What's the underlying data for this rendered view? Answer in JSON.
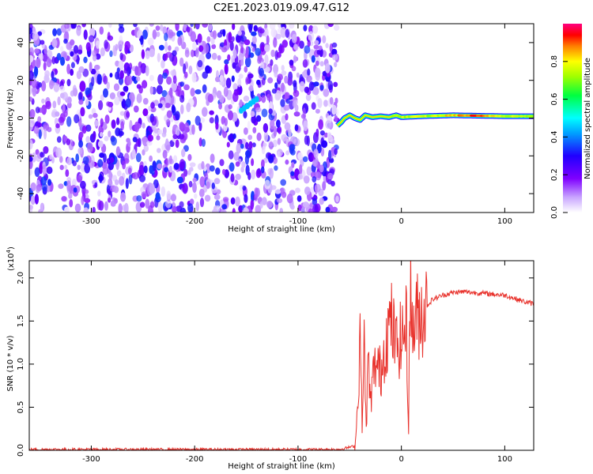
{
  "title": "C2E1.2023.019.09.47.G12",
  "chart_data": [
    {
      "type": "heatmap",
      "xlabel": "Height of straight line (km)",
      "ylabel": "Frequency (Hz)",
      "xlim": [
        -360,
        128
      ],
      "ylim": [
        -50,
        50
      ],
      "xticks": [
        -300,
        -200,
        -100,
        0,
        100
      ],
      "yticks": [
        -40,
        -20,
        0,
        20,
        40
      ],
      "colorbar": {
        "label": "Normalized spectral amplitude",
        "range": [
          0.0,
          1.0
        ],
        "ticks": [
          0.0,
          0.2,
          0.4,
          0.6,
          0.8
        ],
        "tick_labels": [
          "0.0",
          "0.2",
          "0.4",
          "0.6",
          "0.8"
        ],
        "colormap": [
          "#ffffff",
          "#7f00ff",
          "#0000ff",
          "#00ffff",
          "#00ff00",
          "#ffff00",
          "#ff0000",
          "#ff0080"
        ]
      },
      "noise_region": {
        "x": [
          -360,
          -62
        ],
        "freq": [
          -50,
          50
        ],
        "amplitude": [
          0.05,
          0.35
        ]
      },
      "carrier_trace": [
        {
          "x": -62,
          "freq": -4.0
        },
        {
          "x": -58,
          "freq": -2.0
        },
        {
          "x": -55,
          "freq": 0.0
        },
        {
          "x": -50,
          "freq": 1.5
        },
        {
          "x": -45,
          "freq": 0.0
        },
        {
          "x": -40,
          "freq": -1.0
        },
        {
          "x": -35,
          "freq": 1.5
        },
        {
          "x": -28,
          "freq": 0.5
        },
        {
          "x": -20,
          "freq": 1.0
        },
        {
          "x": -12,
          "freq": 0.5
        },
        {
          "x": -5,
          "freq": 1.5
        },
        {
          "x": 0,
          "freq": 0.5
        },
        {
          "x": 20,
          "freq": 1.0
        },
        {
          "x": 50,
          "freq": 1.5
        },
        {
          "x": 80,
          "freq": 1.2
        },
        {
          "x": 100,
          "freq": 1.0
        },
        {
          "x": 128,
          "freq": 1.0
        }
      ],
      "carrier_amplitude": [
        {
          "x": -62,
          "amp": 0.3
        },
        {
          "x": -40,
          "amp": 0.4
        },
        {
          "x": -20,
          "amp": 0.6
        },
        {
          "x": 0,
          "amp": 0.75
        },
        {
          "x": 30,
          "amp": 0.75
        },
        {
          "x": 70,
          "amp": 0.9
        },
        {
          "x": 95,
          "amp": 0.8
        },
        {
          "x": 128,
          "amp": 0.7
        }
      ],
      "spur": {
        "x": [
          -155,
          -140
        ],
        "freq": [
          4,
          10
        ],
        "amplitude": 0.35
      }
    },
    {
      "type": "line",
      "xlabel": "Height of straight line (km)",
      "ylabel": "SNR (10 * v/v)",
      "multiplier_label": "(x10",
      "multiplier_exponent": "4",
      "xlim": [
        -360,
        128
      ],
      "ylim": [
        0.0,
        2.2
      ],
      "xticks": [
        -300,
        -200,
        -100,
        0,
        100
      ],
      "yticks": [
        0.0,
        0.5,
        1.0,
        1.5,
        2.0
      ],
      "ytick_labels": [
        "0.0",
        "0.5",
        "1.0",
        "1.5",
        "2.0"
      ],
      "line_color": "#e8302a",
      "series": [
        {
          "x": [
            -360,
            -300,
            -200,
            -100,
            -60,
            -45,
            -42,
            -40,
            -38,
            -36,
            -34,
            -32,
            -30,
            -28,
            -25,
            -20,
            -15,
            -10,
            -5,
            0,
            5,
            7,
            8,
            10,
            15,
            20,
            25,
            30,
            40,
            50,
            60,
            70,
            80,
            90,
            100,
            110,
            120,
            128
          ],
          "y": [
            0.01,
            0.01,
            0.01,
            0.01,
            0.01,
            0.05,
            0.55,
            1.4,
            0.3,
            1.2,
            0.25,
            1.1,
            0.5,
            0.8,
            1.0,
            0.9,
            1.3,
            1.5,
            1.2,
            1.3,
            1.45,
            0.15,
            2.2,
            1.4,
            1.55,
            1.6,
            1.68,
            1.75,
            1.8,
            1.83,
            1.84,
            1.83,
            1.82,
            1.81,
            1.8,
            1.76,
            1.72,
            1.7
          ]
        }
      ]
    }
  ]
}
